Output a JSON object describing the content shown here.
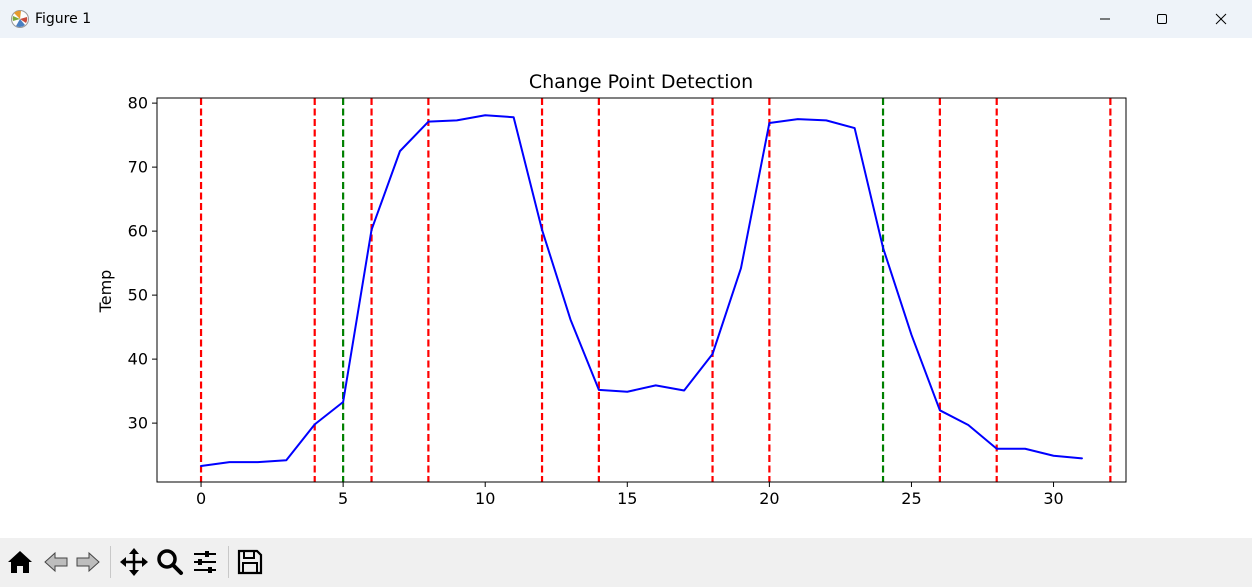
{
  "window": {
    "title": "Figure 1",
    "icon": "matplotlib-icon",
    "controls": [
      "minimize-icon",
      "maximize-icon",
      "close-icon"
    ]
  },
  "toolbar": {
    "buttons": [
      "home-icon",
      "back-icon",
      "forward-icon",
      "pan-icon",
      "zoom-icon",
      "configure-subplots-icon",
      "save-icon"
    ]
  },
  "chart_data": {
    "type": "line",
    "title": "Change Point Detection",
    "xlabel": "",
    "ylabel": "Temp",
    "xlim": [
      -1.55,
      32.55
    ],
    "ylim": [
      20.8,
      80.8
    ],
    "xticks": [
      0,
      5,
      10,
      15,
      20,
      25,
      30
    ],
    "yticks": [
      30,
      40,
      50,
      60,
      70,
      80
    ],
    "grid": false,
    "series": [
      {
        "color": "#0000ff",
        "x": [
          0,
          1,
          2,
          3,
          4,
          5,
          6,
          7,
          8,
          9,
          10,
          11,
          12,
          13,
          14,
          15,
          16,
          17,
          18,
          19,
          20,
          21,
          22,
          23,
          24,
          25,
          26,
          27,
          28,
          29,
          30,
          31
        ],
        "values": [
          23.3,
          23.9,
          23.9,
          24.2,
          29.8,
          33.3,
          60.2,
          72.5,
          77.1,
          77.3,
          78.1,
          77.8,
          60.2,
          46.2,
          35.2,
          34.9,
          35.9,
          35.1,
          40.8,
          54.2,
          76.9,
          77.5,
          77.3,
          76.1,
          57.4,
          43.8,
          32.0,
          29.7,
          26.0,
          26.0,
          24.9,
          24.5
        ]
      }
    ],
    "vlines": [
      {
        "x": 0,
        "color": "#ff0000",
        "style": "dashed"
      },
      {
        "x": 4,
        "color": "#ff0000",
        "style": "dashed"
      },
      {
        "x": 5,
        "color": "#008000",
        "style": "dashed"
      },
      {
        "x": 6,
        "color": "#ff0000",
        "style": "dashed"
      },
      {
        "x": 8,
        "color": "#ff0000",
        "style": "dashed"
      },
      {
        "x": 12,
        "color": "#ff0000",
        "style": "dashed"
      },
      {
        "x": 14,
        "color": "#ff0000",
        "style": "dashed"
      },
      {
        "x": 18,
        "color": "#ff0000",
        "style": "dashed"
      },
      {
        "x": 20,
        "color": "#ff0000",
        "style": "dashed"
      },
      {
        "x": 24,
        "color": "#008000",
        "style": "dashed"
      },
      {
        "x": 26,
        "color": "#ff0000",
        "style": "dashed"
      },
      {
        "x": 28,
        "color": "#ff0000",
        "style": "dashed"
      },
      {
        "x": 32,
        "color": "#ff0000",
        "style": "dashed"
      }
    ]
  }
}
